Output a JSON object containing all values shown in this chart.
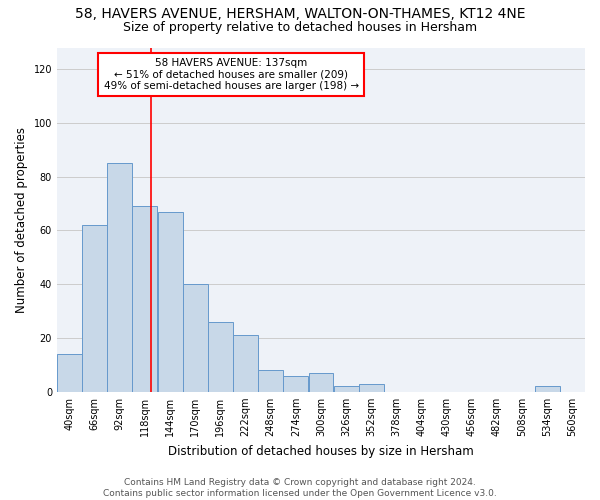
{
  "title1": "58, HAVERS AVENUE, HERSHAM, WALTON-ON-THAMES, KT12 4NE",
  "title2": "Size of property relative to detached houses in Hersham",
  "xlabel": "Distribution of detached houses by size in Hersham",
  "ylabel": "Number of detached properties",
  "bin_labels": [
    "40sqm",
    "66sqm",
    "92sqm",
    "118sqm",
    "144sqm",
    "170sqm",
    "196sqm",
    "222sqm",
    "248sqm",
    "274sqm",
    "300sqm",
    "326sqm",
    "352sqm",
    "378sqm",
    "404sqm",
    "430sqm",
    "456sqm",
    "482sqm",
    "508sqm",
    "534sqm",
    "560sqm"
  ],
  "bar_heights": [
    14,
    62,
    85,
    69,
    67,
    40,
    26,
    21,
    8,
    6,
    7,
    2,
    3,
    0,
    0,
    0,
    0,
    0,
    0,
    2,
    0
  ],
  "bar_color": "#c8d8e8",
  "bar_edge_color": "#6699cc",
  "property_line_x": 137,
  "bin_edges": [
    40,
    66,
    92,
    118,
    144,
    170,
    196,
    222,
    248,
    274,
    300,
    326,
    352,
    378,
    404,
    430,
    456,
    482,
    508,
    534,
    560
  ],
  "annotation_text": "58 HAVERS AVENUE: 137sqm\n← 51% of detached houses are smaller (209)\n49% of semi-detached houses are larger (198) →",
  "annotation_box_color": "white",
  "annotation_box_edge_color": "red",
  "red_line_color": "red",
  "ylim": [
    0,
    128
  ],
  "yticks": [
    0,
    20,
    40,
    60,
    80,
    100,
    120
  ],
  "grid_color": "#cccccc",
  "background_color": "#eef2f8",
  "footer_text": "Contains HM Land Registry data © Crown copyright and database right 2024.\nContains public sector information licensed under the Open Government Licence v3.0.",
  "title1_fontsize": 10,
  "title2_fontsize": 9,
  "xlabel_fontsize": 8.5,
  "ylabel_fontsize": 8.5,
  "tick_fontsize": 7,
  "annotation_fontsize": 7.5,
  "footer_fontsize": 6.5
}
